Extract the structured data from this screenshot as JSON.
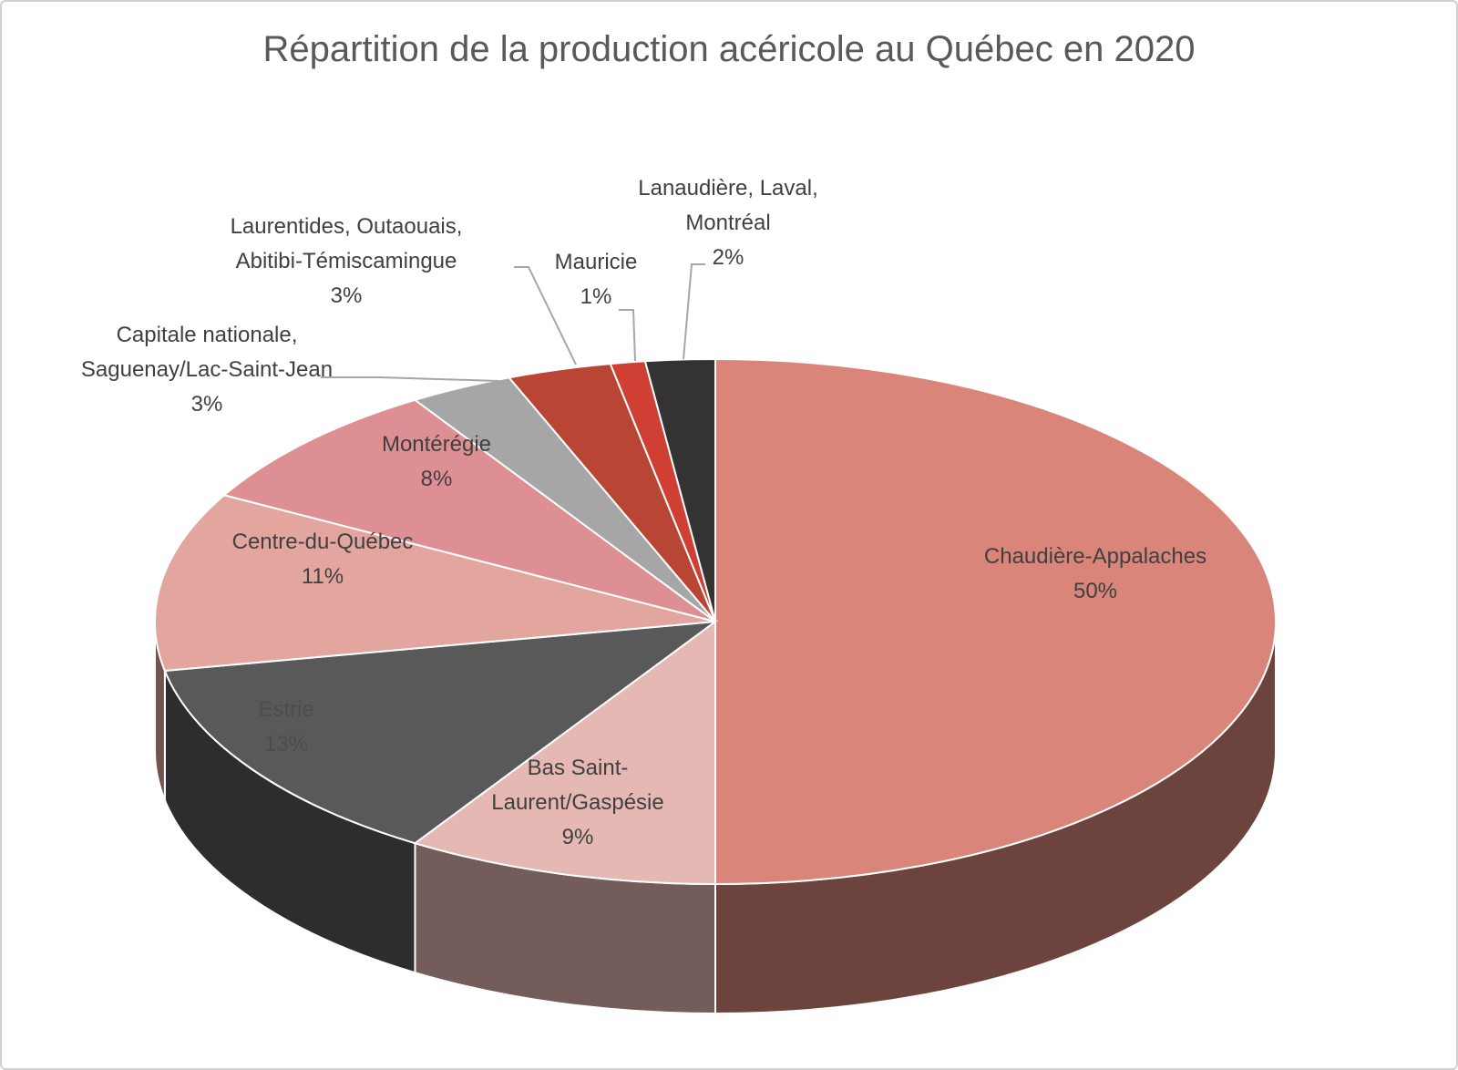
{
  "chart_data": {
    "type": "pie",
    "title": "Répartition de la production acéricole au Québec en 2020",
    "categories": [
      "Chaudière-Appalaches",
      "Bas Saint-Laurent/Gaspésie",
      "Estrie",
      "Centre-du-Québec",
      "Montérégie",
      "Capitale nationale, Saguenay/Lac-Saint-Jean",
      "Laurentides, Outaouais, Abitibi-Témiscamingue",
      "Mauricie",
      "Lanaudière, Laval, Montréal"
    ],
    "values": [
      50,
      9,
      13,
      11,
      8,
      3,
      3,
      1,
      2
    ],
    "value_labels": [
      "50%",
      "9%",
      "13%",
      "11%",
      "8%",
      "3%",
      "3%",
      "1%",
      "2%"
    ],
    "colors": [
      "#d9857a",
      "#e6b8b3",
      "#595959",
      "#e3a69f",
      "#dd8f93",
      "#a6a6a6",
      "#b94634",
      "#cf3f33",
      "#333333"
    ]
  }
}
